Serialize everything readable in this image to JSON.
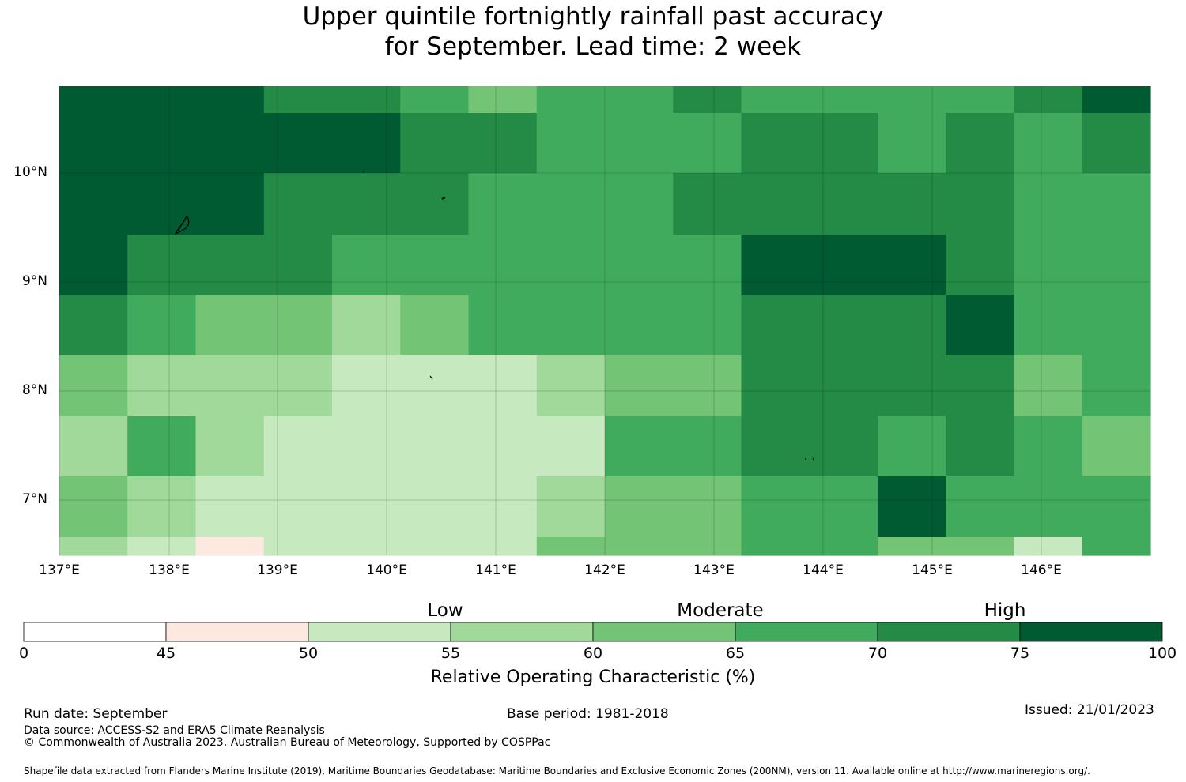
{
  "title_line1": "Upper quintile fortnightly rainfall past accuracy",
  "title_line2": "for September. Lead time: 2 week",
  "map": {
    "lon_labels": [
      "137°E",
      "138°E",
      "139°E",
      "140°E",
      "141°E",
      "142°E",
      "143°E",
      "144°E",
      "145°E",
      "146°E"
    ],
    "lat_labels": [
      "10°N",
      "9°N",
      "8°N",
      "7°N"
    ],
    "lon_range": [
      137,
      147
    ],
    "lat_range": [
      6.5,
      10.8
    ],
    "grid_cells_roc_percent": [
      [
        80,
        80,
        80,
        72,
        72,
        67,
        62,
        67,
        67,
        72,
        67,
        67,
        67,
        67,
        72,
        80
      ],
      [
        80,
        80,
        80,
        80,
        80,
        72,
        72,
        67,
        67,
        67,
        72,
        72,
        67,
        72,
        67,
        72
      ],
      [
        80,
        80,
        80,
        72,
        72,
        72,
        67,
        67,
        67,
        72,
        72,
        72,
        72,
        72,
        67,
        67
      ],
      [
        80,
        72,
        72,
        72,
        67,
        67,
        67,
        67,
        67,
        67,
        80,
        80,
        80,
        72,
        67,
        67
      ],
      [
        72,
        67,
        62,
        62,
        57,
        62,
        67,
        67,
        67,
        67,
        72,
        72,
        72,
        80,
        67,
        67
      ],
      [
        62,
        57,
        57,
        57,
        52,
        52,
        52,
        57,
        62,
        62,
        72,
        72,
        72,
        72,
        62,
        67
      ],
      [
        57,
        67,
        57,
        52,
        52,
        52,
        52,
        52,
        67,
        67,
        72,
        72,
        67,
        72,
        67,
        62
      ],
      [
        62,
        57,
        52,
        52,
        52,
        52,
        52,
        57,
        62,
        62,
        67,
        67,
        80,
        67,
        67,
        67
      ],
      [
        57,
        52,
        47,
        52,
        52,
        52,
        52,
        62,
        62,
        62,
        67,
        67,
        62,
        62,
        52,
        67
      ]
    ]
  },
  "colorbar": {
    "categories": [
      "Low",
      "Moderate",
      "High"
    ],
    "ticks": [
      "0",
      "45",
      "50",
      "55",
      "60",
      "65",
      "70",
      "75",
      "100"
    ],
    "colors": [
      "#ffffff",
      "#fee9e0",
      "#c7e9c0",
      "#a1d99b",
      "#74c476",
      "#41ab5d",
      "#238b45",
      "#005a32"
    ],
    "label": "Relative Operating Characteristic (%)"
  },
  "footer": {
    "run_date": "Run date: September",
    "base_period": "Base period: 1981-2018",
    "issued": "Issued: 21/01/2023",
    "data_source": "Data source: ACCESS-S2 and ERA5 Climate Reanalysis",
    "copyright": "© Commonwealth of Australia 2023, Australian Bureau of Meteorology, Supported by COSPPac",
    "shapefile_note": "Shapefile data extracted from Flanders Marine Institute (2019), Maritime Boundaries Geodatabase: Maritime Boundaries and Exclusive Economic Zones (200NM), version 11. Available online at http://www.marineregions.org/."
  }
}
